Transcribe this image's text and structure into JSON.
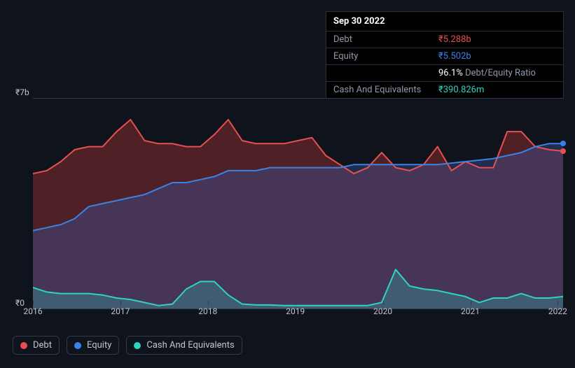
{
  "tooltip": {
    "date": "Sep 30 2022",
    "rows": {
      "debt": {
        "label": "Debt",
        "value": "₹5.288b"
      },
      "equity": {
        "label": "Equity",
        "value": "₹5.502b"
      },
      "ratio": {
        "label": "",
        "value": "96.1%",
        "suffix": " Debt/Equity Ratio"
      },
      "cash": {
        "label": "Cash And Equivalents",
        "value": "₹390.826m"
      }
    }
  },
  "chart": {
    "y_axis": {
      "top_label": "₹7b",
      "bottom_label": "₹0"
    },
    "x_axis": {
      "labels": [
        "2016",
        "2017",
        "2018",
        "2019",
        "2020",
        "2021",
        "2022"
      ],
      "positions_pct": [
        0,
        16.5,
        33,
        49.5,
        66,
        82.5,
        99
      ]
    },
    "background_color": "#0f131c",
    "grid_color": "#333a47",
    "series": {
      "debt": {
        "label": "Debt",
        "color": "#e85050",
        "fill": "rgba(200,60,60,0.35)",
        "values": [
          4.5,
          4.6,
          4.9,
          5.3,
          5.4,
          5.4,
          5.9,
          6.3,
          5.6,
          5.5,
          5.5,
          5.4,
          5.4,
          5.8,
          6.3,
          5.6,
          5.5,
          5.5,
          5.5,
          5.6,
          5.7,
          5.1,
          4.8,
          4.5,
          4.7,
          5.2,
          4.7,
          4.6,
          4.8,
          5.4,
          4.6,
          4.9,
          4.7,
          4.7,
          5.9,
          5.9,
          5.4,
          5.3,
          5.25
        ]
      },
      "equity": {
        "label": "Equity",
        "color": "#3b82e6",
        "fill": "rgba(59,85,160,0.4)",
        "values": [
          2.6,
          2.7,
          2.8,
          3.0,
          3.4,
          3.5,
          3.6,
          3.7,
          3.8,
          4.0,
          4.2,
          4.2,
          4.3,
          4.4,
          4.6,
          4.6,
          4.6,
          4.7,
          4.7,
          4.7,
          4.7,
          4.7,
          4.7,
          4.8,
          4.8,
          4.8,
          4.8,
          4.8,
          4.8,
          4.8,
          4.85,
          4.9,
          4.95,
          5.0,
          5.1,
          5.2,
          5.4,
          5.5,
          5.5
        ]
      },
      "cash": {
        "label": "Cash And Equivalents",
        "color": "#2dd4bf",
        "fill": "rgba(45,212,191,0.25)",
        "values": [
          0.7,
          0.55,
          0.5,
          0.5,
          0.5,
          0.45,
          0.35,
          0.3,
          0.2,
          0.1,
          0.15,
          0.65,
          0.9,
          0.9,
          0.45,
          0.15,
          0.12,
          0.12,
          0.1,
          0.1,
          0.1,
          0.1,
          0.1,
          0.1,
          0.1,
          0.2,
          1.3,
          0.75,
          0.65,
          0.6,
          0.5,
          0.4,
          0.2,
          0.35,
          0.35,
          0.5,
          0.35,
          0.35,
          0.4
        ]
      }
    },
    "y_max": 7,
    "end_markers": {
      "equity": {
        "color": "#3b82e6",
        "y": 5.5
      },
      "debt": {
        "color": "#e85050",
        "y": 5.25
      }
    }
  },
  "legend": {
    "debt": "Debt",
    "equity": "Equity",
    "cash": "Cash And Equivalents"
  }
}
